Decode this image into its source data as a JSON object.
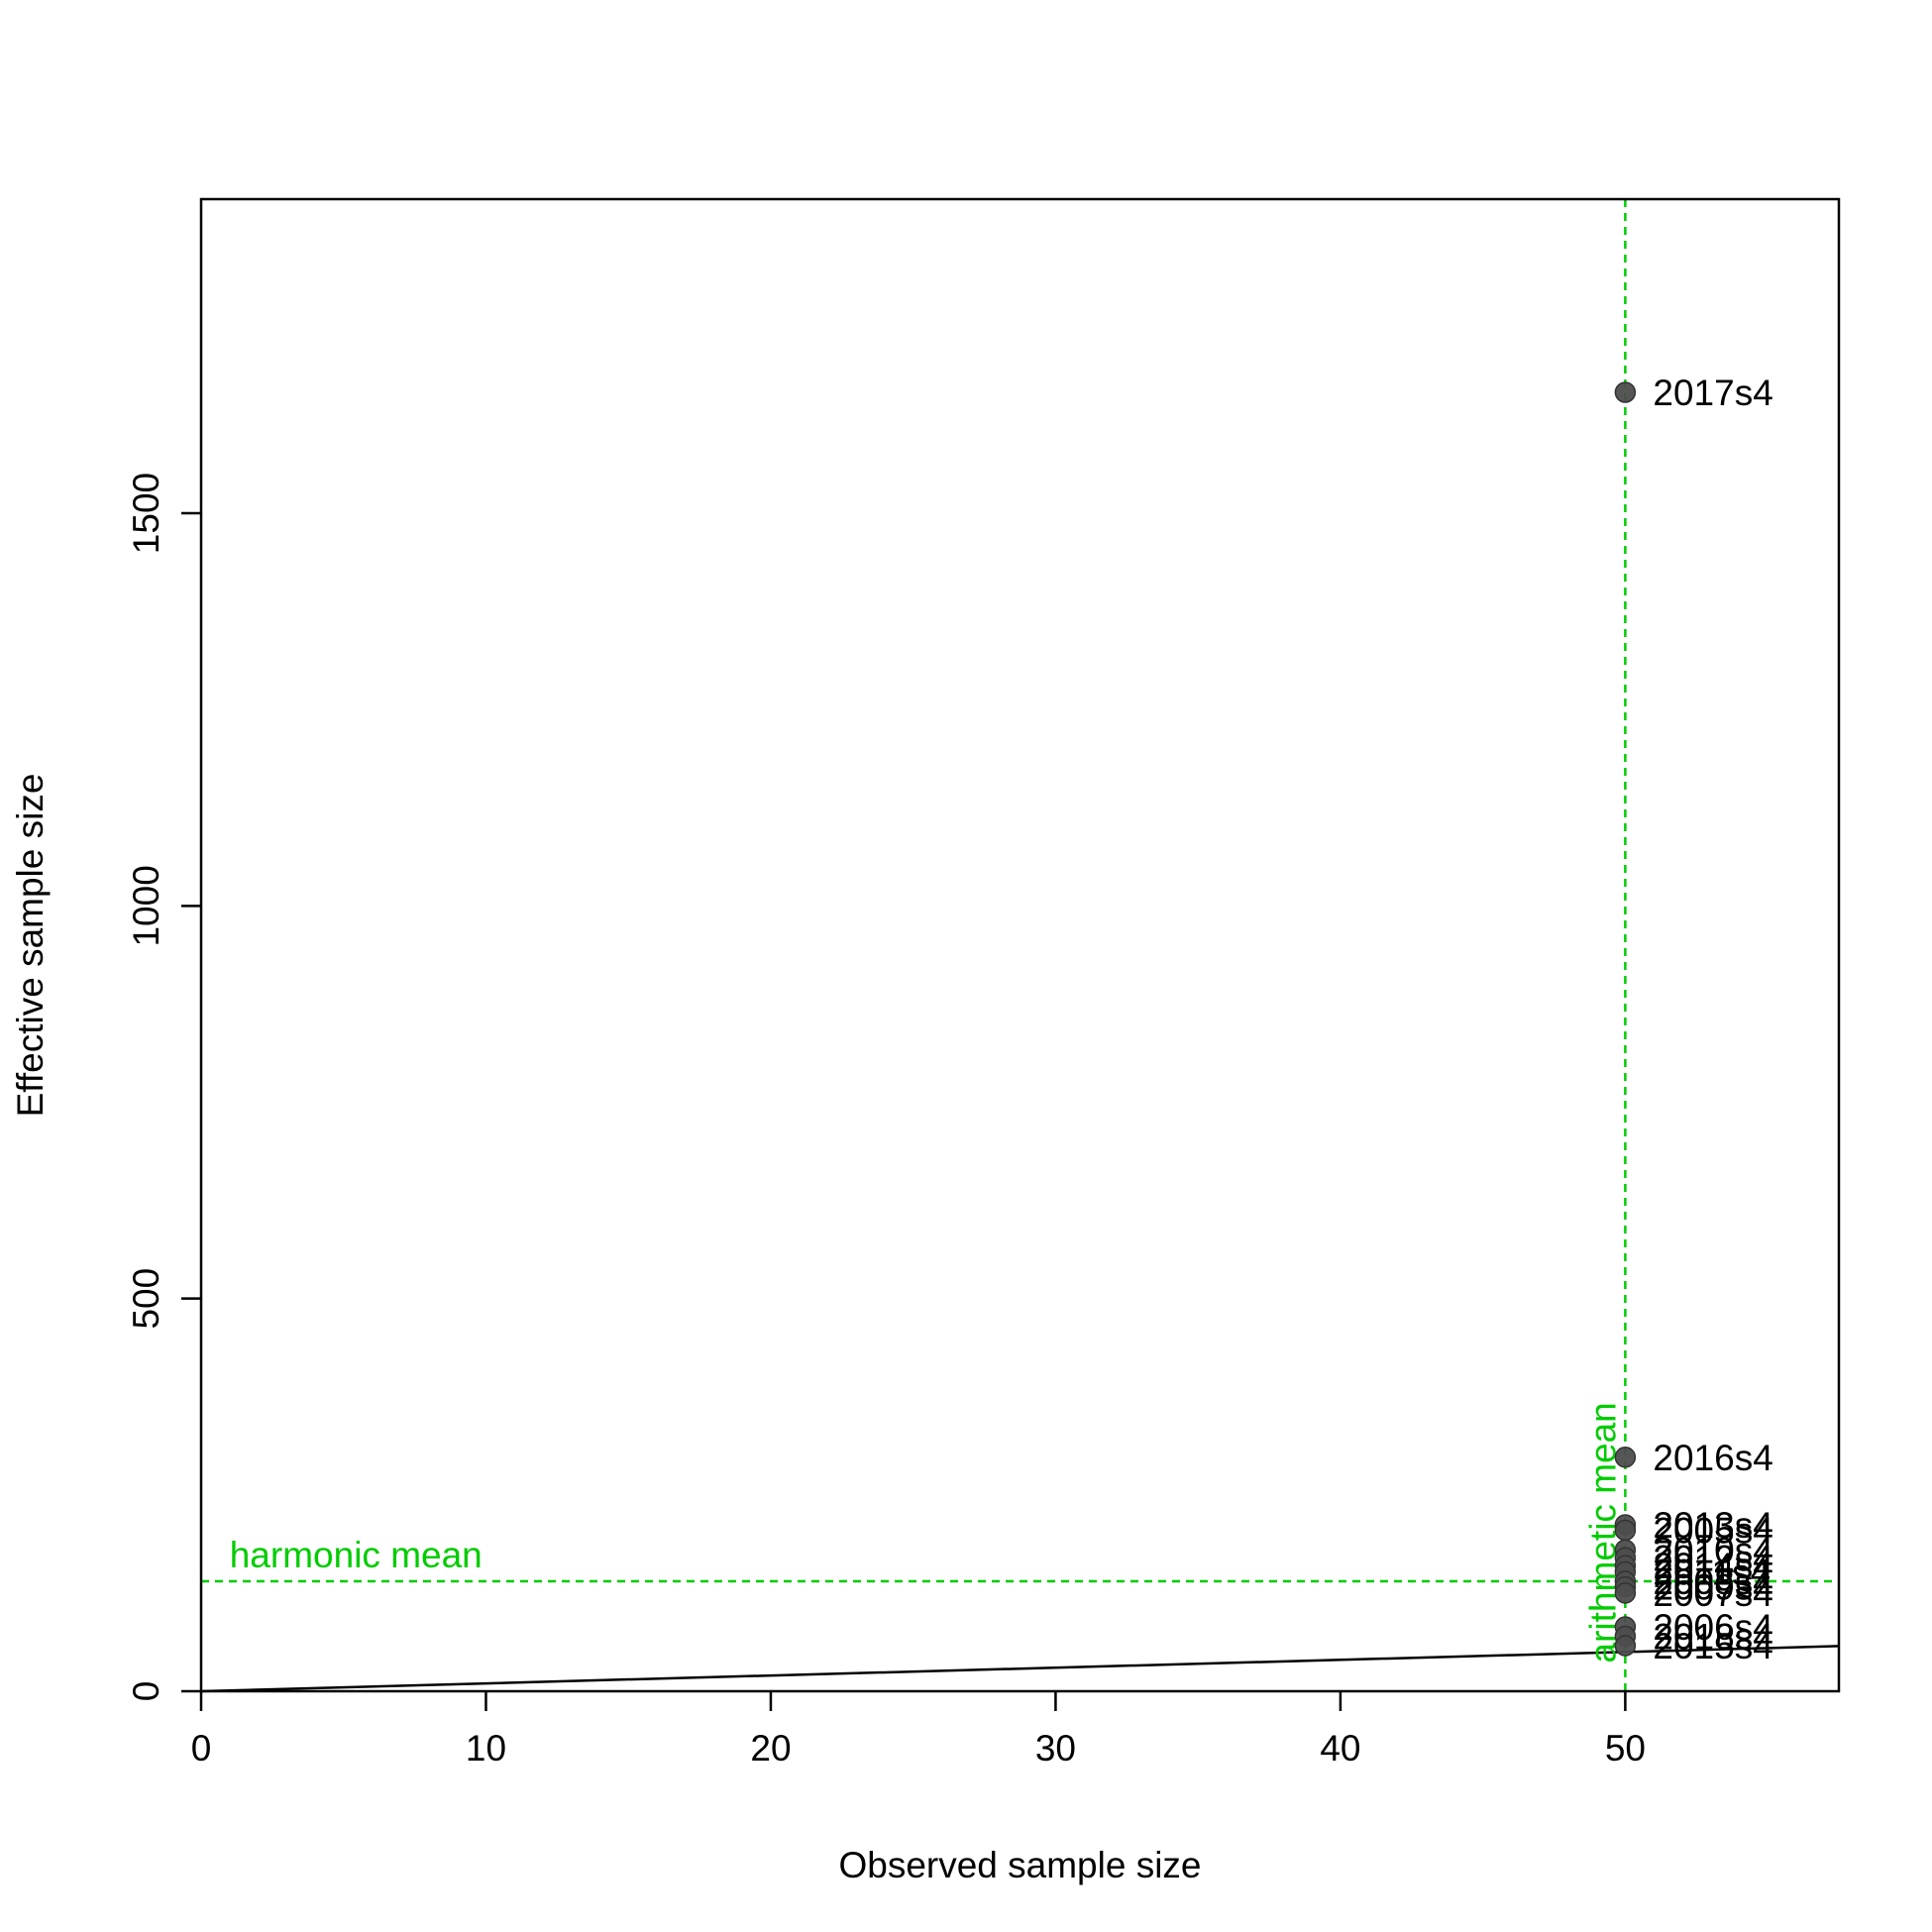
{
  "chart_data": {
    "type": "scatter",
    "title": "",
    "xlabel": "Observed sample size",
    "ylabel": "Effective sample size",
    "xlim": [
      0,
      57.5
    ],
    "ylim": [
      0,
      1900
    ],
    "x_ticks": [
      0,
      10,
      20,
      30,
      40,
      50
    ],
    "y_ticks": [
      0,
      500,
      1000,
      1500
    ],
    "grid": false,
    "points": [
      {
        "label": "2017s4",
        "x": 50,
        "y": 1654
      },
      {
        "label": "2016s4",
        "x": 50,
        "y": 298
      },
      {
        "label": "2013s4",
        "x": 50,
        "y": 212
      },
      {
        "label": "2005s4",
        "x": 50,
        "y": 205
      },
      {
        "label": "2010s4",
        "x": 50,
        "y": 180
      },
      {
        "label": "2012s4",
        "x": 50,
        "y": 170
      },
      {
        "label": "2014s4",
        "x": 50,
        "y": 160
      },
      {
        "label": "2011s4",
        "x": 50,
        "y": 152
      },
      {
        "label": "2008s4",
        "x": 50,
        "y": 140
      },
      {
        "label": "2009s4",
        "x": 50,
        "y": 133
      },
      {
        "label": "2007s4",
        "x": 50,
        "y": 125
      },
      {
        "label": "2006s4",
        "x": 50,
        "y": 82
      },
      {
        "label": "2018s4",
        "x": 50,
        "y": 70
      },
      {
        "label": "2015s4",
        "x": 50,
        "y": 58
      }
    ],
    "reference_lines": {
      "one_to_one": {
        "slope": 1,
        "intercept": 0,
        "color": "#000000"
      },
      "harmonic_mean": {
        "value": 140,
        "label": "harmonic mean",
        "color": "#00CC00"
      },
      "arithmetic_mean": {
        "value": 50,
        "label": "arithmetic mean",
        "color": "#00CC00"
      }
    },
    "point_color": "#4d4d4d"
  }
}
